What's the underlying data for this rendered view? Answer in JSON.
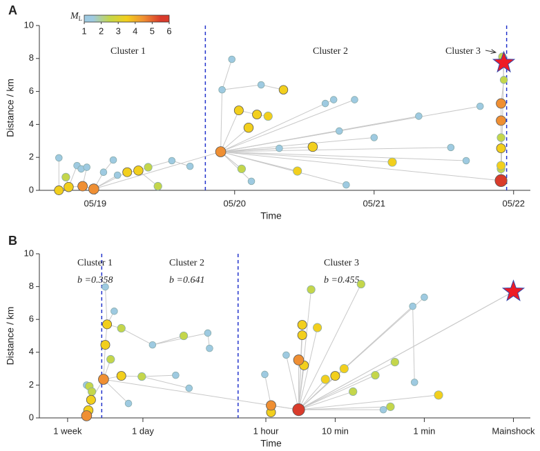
{
  "chart_data": [
    {
      "type": "scatter",
      "panel_label": "A",
      "xlabel": "Time",
      "ylabel": "Distance / km",
      "xlim": [
        -0.4,
        3.12
      ],
      "ylim": [
        0,
        10
      ],
      "xticks": [
        {
          "value": 0,
          "label": "05/19"
        },
        {
          "value": 1,
          "label": "05/20"
        },
        {
          "value": 2,
          "label": "05/21"
        },
        {
          "value": 3,
          "label": "05/22"
        }
      ],
      "yticks": [
        0,
        2,
        4,
        6,
        8,
        10
      ],
      "dividers": [
        0.79,
        2.95
      ],
      "annotations": [
        "Cluster 1",
        "Cluster 2",
        "Cluster 3"
      ],
      "colorbar": {
        "label": "M",
        "label_sub": "L",
        "ticks": [
          1,
          2,
          3,
          4,
          5,
          6
        ],
        "colors": [
          "#9ecae1",
          "#c4d64b",
          "#f2cf1d",
          "#ef8f33",
          "#d93b2b"
        ]
      },
      "mainshock": {
        "x": 2.93,
        "y": 7.74,
        "parent": 43
      },
      "x": [
        -0.26,
        -0.19,
        -0.09,
        -0.01,
        -0.13,
        -0.1,
        -0.06,
        0.06,
        0.16,
        0.23,
        0.31,
        0.38,
        0.45,
        0.55,
        0.68,
        -0.26,
        0.13,
        -0.21,
        0.9,
        0.91,
        0.98,
        1.03,
        1.1,
        1.16,
        1.19,
        1.35,
        1.05,
        1.12,
        1.32,
        1.45,
        1.56,
        1.65,
        1.75,
        1.8,
        1.86,
        2.0,
        2.13,
        2.32,
        2.55,
        2.66,
        2.76,
        1.71,
        1.24,
        2.91,
        2.91,
        2.91,
        2.91,
        2.91,
        2.91,
        2.91,
        2.93,
        2.92
      ],
      "values": [
        0.0,
        0.2,
        0.25,
        0.08,
        1.5,
        1.3,
        1.4,
        1.1,
        0.92,
        1.1,
        1.2,
        1.4,
        0.25,
        1.8,
        1.46,
        1.97,
        1.84,
        0.8,
        2.34,
        6.1,
        7.95,
        4.85,
        3.8,
        4.6,
        6.4,
        6.1,
        1.3,
        0.55,
        2.55,
        1.17,
        2.64,
        5.27,
        3.6,
        0.33,
        5.5,
        3.2,
        1.71,
        4.5,
        2.6,
        1.8,
        5.1,
        5.5,
        4.5,
        0.59,
        4.23,
        5.27,
        2.55,
        1.5,
        3.2,
        1.3,
        6.7,
        8.1
      ],
      "magnitudes": [
        3.5,
        3.8,
        4.0,
        4.5,
        1.5,
        1.5,
        1.5,
        1.5,
        1.5,
        3.5,
        3.8,
        2.5,
        2.5,
        1.5,
        1.5,
        1.5,
        1.5,
        2.5,
        4.5,
        1.5,
        1.5,
        3.5,
        3.8,
        3.5,
        1.5,
        3.2,
        2.5,
        1.5,
        1.5,
        3.0,
        3.8,
        1.5,
        1.5,
        1.5,
        1.5,
        1.5,
        3.0,
        1.5,
        1.5,
        1.5,
        1.5,
        1.5,
        3.0,
        6.0,
        4.0,
        4.0,
        3.5,
        3.0,
        2.5,
        2.5,
        2.0,
        2.5
      ],
      "parents": [
        null,
        0,
        1,
        2,
        1,
        4,
        2,
        3,
        3,
        3,
        9,
        10,
        10,
        11,
        13,
        0,
        7,
        1,
        3,
        18,
        19,
        18,
        18,
        21,
        19,
        24,
        18,
        18,
        18,
        18,
        18,
        18,
        18,
        18,
        18,
        18,
        18,
        18,
        18,
        18,
        18,
        31,
        23,
        18,
        43,
        44,
        43,
        43,
        46,
        47,
        45,
        50
      ]
    },
    {
      "type": "scatter",
      "panel_label": "B",
      "xlabel": "Time",
      "ylabel": "Distance / km",
      "xlim": [
        4.32,
        -1.19
      ],
      "ylim": [
        0,
        10
      ],
      "xticks": [
        {
          "value": 4.003,
          "label": "1 week"
        },
        {
          "value": 3.158,
          "label": "1 day"
        },
        {
          "value": 1.778,
          "label": "1 hour"
        },
        {
          "value": 1,
          "label": "10 min"
        },
        {
          "value": 0,
          "label": "1 min"
        },
        {
          "value": -1,
          "label": "Mainshock"
        }
      ],
      "yticks": [
        0,
        2,
        4,
        6,
        8,
        10
      ],
      "dividers": [
        3.62,
        2.09
      ],
      "annotations": [
        "Cluster 1",
        "Cluster 2",
        "Cluster 3"
      ],
      "b_labels": [
        "b =0.358",
        "b =0.641",
        "b =0.455"
      ],
      "mainshock": {
        "x": -1,
        "y": 7.7,
        "parent": 22
      },
      "x": [
        3.79,
        3.77,
        3.74,
        3.76,
        3.79,
        3.73,
        3.6,
        3.58,
        3.56,
        3.58,
        3.52,
        3.48,
        3.4,
        3.4,
        3.32,
        3.17,
        3.05,
        2.79,
        2.64,
        2.43,
        2.41,
        2.7,
        1.41,
        1.72,
        1.72,
        1.41,
        1.37,
        1.37,
        1.35,
        1.27,
        1.2,
        0.71,
        0.33,
        0.13,
        0.0,
        0.11,
        -0.16,
        0.46,
        0.38,
        1.0,
        1.11,
        1.55,
        1.79,
        0.55,
        0.8,
        0.9
      ],
      "values": [
        0.13,
        0.46,
        1.1,
        1.93,
        2.0,
        1.6,
        2.35,
        4.45,
        5.7,
        7.98,
        3.57,
        6.5,
        5.46,
        2.56,
        0.88,
        2.52,
        4.45,
        2.6,
        1.81,
        5.17,
        4.24,
        5.0,
        0.5,
        0.76,
        0.34,
        3.53,
        5.04,
        5.67,
        3.2,
        7.82,
        5.5,
        8.15,
        3.4,
        6.8,
        7.35,
        2.17,
        1.39,
        0.5,
        0.68,
        2.56,
        2.35,
        3.83,
        2.65,
        2.6,
        1.6,
        3.0
      ],
      "magnitudes": [
        4.5,
        3.8,
        3.5,
        2.5,
        1.5,
        2.5,
        4.5,
        3.5,
        3.5,
        1.5,
        2.5,
        1.5,
        2.5,
        3.5,
        1.5,
        2.5,
        1.5,
        1.5,
        1.5,
        1.5,
        1.5,
        2.5,
        6.0,
        4.0,
        3.5,
        4.5,
        3.5,
        3.5,
        3.5,
        2.5,
        3.0,
        2.5,
        2.5,
        1.5,
        1.5,
        1.5,
        3.0,
        1.5,
        2.5,
        3.5,
        3.0,
        1.5,
        1.5,
        2.5,
        2.5,
        3.0
      ],
      "parents": [
        null,
        0,
        1,
        2,
        2,
        2,
        2,
        6,
        7,
        8,
        6,
        8,
        8,
        6,
        6,
        13,
        12,
        15,
        15,
        16,
        19,
        16,
        6,
        22,
        23,
        22,
        22,
        22,
        22,
        22,
        22,
        22,
        22,
        22,
        22,
        33,
        22,
        22,
        22,
        22,
        22,
        22,
        23,
        22,
        22,
        22
      ]
    }
  ]
}
